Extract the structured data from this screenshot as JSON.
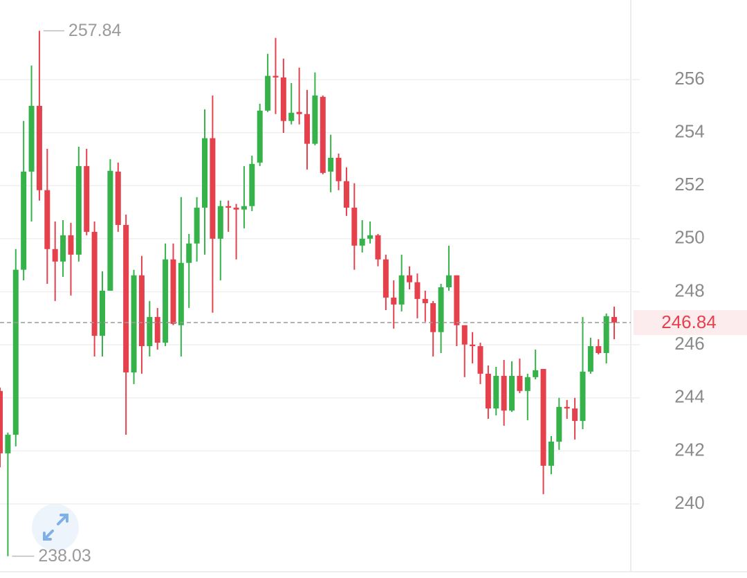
{
  "chart_data": {
    "type": "candlestick",
    "up_color": "#36b24a",
    "down_color": "#e5414d",
    "ylim": [
      237.47,
      259.0
    ],
    "yticks": [
      240,
      242,
      244,
      246,
      248,
      250,
      252,
      254,
      256
    ],
    "grid": true,
    "open": [
      244.26,
      241.91,
      242.61,
      248.83,
      252.53,
      255.01,
      251.83,
      249.61,
      249.14,
      250.13,
      249.4,
      252.74,
      250.26,
      246.34,
      248.04,
      252.53,
      250.52,
      244.96,
      248.62,
      245.95,
      247.05,
      246.08,
      249.22,
      246.74,
      249.09,
      249.82,
      251.17,
      253.79,
      250.0,
      251.23,
      251.17,
      251.1,
      251.23,
      252.87,
      254.83,
      256.14,
      256.08,
      254.44,
      254.78,
      254.7,
      253.58,
      255.35,
      252.53,
      253.05,
      252.17,
      251.17,
      249.74,
      250.0,
      250.13,
      249.22,
      247.78,
      247.52,
      248.62,
      248.36,
      247.73,
      247.57,
      246.48,
      248.17,
      248.62,
      246.74,
      246.01,
      245.95,
      244.91,
      243.6,
      244.83,
      243.52,
      244.83,
      244.26,
      244.78,
      245.09,
      241.44,
      242.35,
      243.66,
      243.6,
      243.13,
      244.99,
      245.95,
      245.69,
      247.05
    ],
    "high": [
      244.39,
      242.69,
      249.61,
      254.44,
      256.53,
      257.84,
      253.39,
      250.65,
      250.7,
      250.6,
      253.47,
      253.39,
      250.65,
      248.77,
      253.0,
      252.87,
      250.91,
      248.83,
      249.35,
      247.65,
      247.39,
      249.82,
      249.82,
      251.57,
      250.18,
      251.57,
      254.88,
      255.4,
      251.44,
      251.44,
      251.31,
      252.74,
      253.13,
      255.09,
      256.97,
      257.57,
      256.79,
      255.87,
      256.45,
      255.61,
      256.27,
      255.4,
      253.92,
      253.21,
      252.69,
      252.09,
      250.7,
      250.65,
      250.18,
      249.4,
      248.43,
      249.4,
      248.96,
      248.69,
      248.04,
      247.65,
      248.3,
      249.74,
      248.62,
      246.74,
      246.48,
      246.08,
      245.22,
      245.17,
      245.43,
      245.38,
      245.48,
      244.91,
      245.82,
      245.09,
      242.56,
      244.0,
      243.92,
      244.0,
      247.05,
      246.27,
      246.21,
      247.18,
      247.44
    ],
    "low": [
      241.38,
      238.03,
      242.17,
      248.43,
      250.65,
      251.44,
      248.3,
      247.65,
      248.56,
      247.86,
      249.14,
      250.13,
      245.56,
      245.56,
      248.04,
      250.26,
      242.61,
      244.52,
      244.91,
      245.56,
      245.82,
      245.95,
      246.74,
      245.56,
      247.39,
      249.14,
      249.4,
      247.21,
      248.43,
      250.26,
      249.22,
      250.39,
      251.04,
      252.74,
      254.78,
      254.7,
      253.99,
      254.31,
      254.31,
      252.61,
      253.52,
      252.43,
      251.75,
      251.83,
      250.86,
      248.83,
      249.48,
      249.82,
      248.96,
      247.31,
      246.61,
      247.26,
      248.09,
      247.0,
      246.87,
      245.56,
      245.69,
      248.04,
      245.95,
      244.78,
      245.3,
      244.52,
      243.21,
      243.34,
      242.95,
      243.47,
      244.18,
      243.16,
      244.7,
      240.37,
      241.12,
      242.04,
      243.21,
      242.43,
      242.82,
      244.91,
      245.64,
      245.3,
      246.21
    ],
    "close": [
      241.91,
      242.61,
      248.83,
      252.53,
      255.01,
      251.83,
      249.61,
      249.14,
      250.13,
      249.4,
      252.74,
      250.26,
      246.34,
      248.04,
      252.56,
      250.52,
      244.96,
      248.62,
      245.95,
      247.05,
      246.08,
      249.22,
      246.79,
      249.09,
      249.82,
      251.17,
      253.79,
      250.0,
      251.23,
      251.17,
      251.1,
      251.23,
      252.82,
      254.83,
      256.14,
      256.08,
      254.44,
      254.75,
      254.7,
      253.58,
      255.4,
      252.48,
      253.05,
      252.17,
      251.17,
      249.74,
      250.0,
      250.13,
      249.22,
      247.78,
      247.52,
      248.62,
      248.36,
      247.73,
      247.57,
      246.48,
      248.17,
      248.62,
      246.74,
      246.01,
      245.95,
      244.91,
      243.6,
      244.83,
      243.52,
      244.83,
      244.26,
      244.78,
      245.04,
      241.44,
      242.35,
      243.66,
      243.6,
      243.13,
      244.99,
      245.95,
      245.69,
      247.08,
      246.84
    ]
  }
}
